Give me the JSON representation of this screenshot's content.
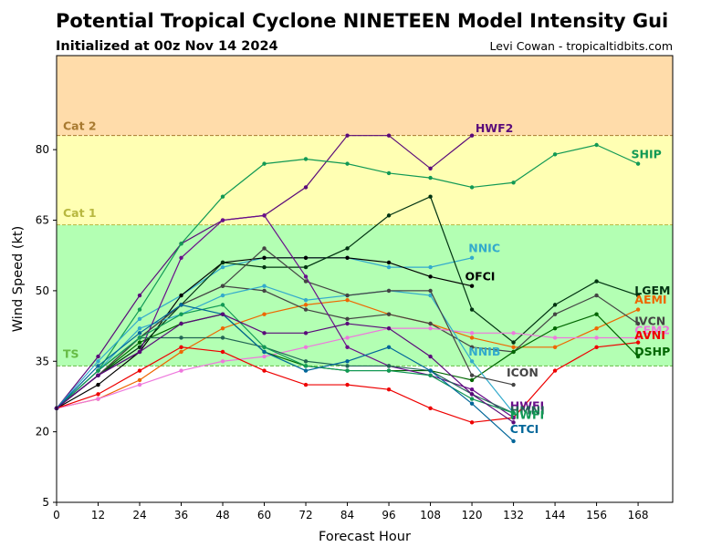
{
  "header": {
    "title": "Potential Tropical Cyclone NINETEEN Model Intensity Gui",
    "subtitle": "Initialized at 00z Nov 14 2024",
    "credit": "Levi Cowan - tropicaltidbits.com"
  },
  "chart_data": {
    "type": "line",
    "title": "Potential Tropical Cyclone NINETEEN Model Intensity Gui",
    "subtitle": "Initialized at 00z Nov 14 2024",
    "xlabel": "Forecast Hour",
    "ylabel": "Wind Speed (kt)",
    "xlim": [
      0,
      178
    ],
    "ylim": [
      5,
      100
    ],
    "xticks": [
      0,
      12,
      24,
      36,
      48,
      60,
      72,
      84,
      96,
      108,
      120,
      132,
      144,
      156,
      168
    ],
    "yticks": [
      5,
      20,
      35,
      50,
      65,
      80
    ],
    "bands": [
      {
        "label": "TS",
        "from": 34,
        "to": 64,
        "color": "#b3ffb3",
        "label_color": "#66bb44",
        "label_y": 36.5
      },
      {
        "label": "Cat 1",
        "from": 64,
        "to": 83,
        "color": "#ffffb3",
        "label_color": "#b8b840",
        "label_y": 66.5
      },
      {
        "label": "Cat 2",
        "from": 83,
        "to": 100,
        "color": "#ffdcaa",
        "label_color": "#a87a30",
        "label_y": 85
      }
    ],
    "series": [
      {
        "name": "HWF2",
        "color": "#5a0a7a",
        "x": [
          0,
          12,
          24,
          36,
          48,
          60,
          72,
          84,
          96,
          108,
          120
        ],
        "y": [
          25,
          36,
          49,
          60,
          65,
          66,
          72,
          83,
          83,
          76,
          83
        ],
        "label_x": 121,
        "label_y": 84.5
      },
      {
        "name": "SHIP",
        "color": "#119955",
        "x": [
          0,
          12,
          24,
          36,
          48,
          60,
          72,
          84,
          96,
          108,
          120,
          132,
          144,
          156,
          168
        ],
        "y": [
          25,
          33,
          46,
          60,
          70,
          77,
          78,
          77,
          75,
          74,
          72,
          73,
          79,
          81,
          77
        ],
        "label_x": 166,
        "label_y": 79
      },
      {
        "name": "NNIC",
        "color": "#33aacc",
        "x": [
          0,
          12,
          24,
          36,
          48,
          60,
          72,
          84,
          96,
          108,
          120
        ],
        "y": [
          25,
          35,
          44,
          49,
          55,
          57,
          57,
          57,
          55,
          55,
          57
        ],
        "label_x": 119,
        "label_y": 59
      },
      {
        "name": "OFCI",
        "color": "#000000",
        "x": [
          0,
          12,
          24,
          36,
          48,
          60,
          72,
          84,
          96,
          108,
          120
        ],
        "y": [
          25,
          30,
          37,
          49,
          56,
          57,
          57,
          57,
          56,
          53,
          51
        ],
        "label_x": 118,
        "label_y": 53
      },
      {
        "name": "LGEM",
        "color": "#003311",
        "x": [
          0,
          12,
          24,
          36,
          48,
          60,
          72,
          84,
          96,
          108,
          120,
          132,
          144,
          156,
          168
        ],
        "y": [
          25,
          32,
          38,
          47,
          56,
          55,
          55,
          59,
          66,
          70,
          46,
          39,
          47,
          52,
          49
        ],
        "label_x": 167,
        "label_y": 50
      },
      {
        "name": "AEMI",
        "color": "#ee6600",
        "x": [
          0,
          12,
          24,
          36,
          48,
          60,
          72,
          84,
          96,
          108,
          120,
          132,
          144,
          156,
          168
        ],
        "y": [
          25,
          27,
          31,
          37,
          42,
          45,
          47,
          48,
          45,
          43,
          40,
          38,
          38,
          42,
          46
        ],
        "label_x": 167,
        "label_y": 48
      },
      {
        "name": "IVCN",
        "color": "#444444",
        "x": [
          0,
          12,
          24,
          36,
          48,
          60,
          72,
          84,
          96,
          108,
          120,
          132,
          144,
          156,
          168
        ],
        "y": [
          25,
          32,
          40,
          47,
          51,
          50,
          46,
          44,
          45,
          43,
          38,
          37,
          45,
          49,
          43
        ],
        "label_x": 167,
        "label_y": 43.5
      },
      {
        "name": "CEM2",
        "color": "#ee77dd",
        "x": [
          0,
          12,
          24,
          36,
          48,
          60,
          72,
          84,
          96,
          108,
          120,
          132,
          144,
          156,
          168
        ],
        "y": [
          25,
          27,
          30,
          33,
          35,
          36,
          38,
          40,
          42,
          42,
          41,
          41,
          40,
          40,
          40
        ],
        "label_x": 167,
        "label_y": 41.5
      },
      {
        "name": "AVNI",
        "color": "#ee0000",
        "x": [
          0,
          12,
          24,
          36,
          48,
          60,
          72,
          84,
          96,
          108,
          120,
          132,
          144,
          156,
          168
        ],
        "y": [
          25,
          28,
          33,
          38,
          37,
          33,
          30,
          30,
          29,
          25,
          22,
          23,
          33,
          38,
          39
        ],
        "label_x": 167,
        "label_y": 40.5
      },
      {
        "name": "DSHP",
        "color": "#006600",
        "x": [
          0,
          12,
          24,
          36,
          48,
          60,
          72,
          84,
          96,
          108,
          120,
          132,
          144,
          156,
          168
        ],
        "y": [
          25,
          32,
          39,
          43,
          45,
          37,
          34,
          33,
          33,
          33,
          31,
          37,
          42,
          45,
          36
        ],
        "label_x": 167,
        "label_y": 37
      },
      {
        "name": "NNIB",
        "color": "#33aacc",
        "x": [
          0,
          12,
          24,
          36,
          48,
          60,
          72,
          84,
          96,
          108,
          120,
          132
        ],
        "y": [
          25,
          33,
          42,
          45,
          49,
          51,
          48,
          49,
          50,
          49,
          35,
          24
        ],
        "label_x": 119,
        "label_y": 37
      },
      {
        "name": "ICON",
        "color": "#444444",
        "x": [
          0,
          12,
          24,
          36,
          48,
          60,
          72,
          84,
          96,
          108,
          120,
          132
        ],
        "y": [
          25,
          32,
          40,
          47,
          51,
          59,
          52,
          49,
          50,
          50,
          32,
          30
        ],
        "label_x": 130,
        "label_y": 32.5
      },
      {
        "name": "HWFI",
        "color": "#6a0f8a",
        "x": [
          0,
          12,
          24,
          36,
          48,
          60,
          72,
          84,
          96,
          108,
          120,
          132
        ],
        "y": [
          25,
          32,
          37,
          57,
          65,
          66,
          53,
          38,
          34,
          32,
          29,
          23
        ],
        "label_x": 131,
        "label_y": 25.5
      },
      {
        "name": "HMNI",
        "color": "#226655",
        "x": [
          0,
          12,
          24,
          36,
          48,
          60,
          72,
          84,
          96,
          108,
          120,
          132
        ],
        "y": [
          25,
          33,
          40,
          40,
          40,
          38,
          35,
          34,
          34,
          33,
          28,
          24
        ],
        "label_x": 131,
        "label_y": 24.5
      },
      {
        "name": "HWFI",
        "color": "#119955",
        "x": [
          0,
          12,
          24,
          36,
          48,
          60,
          72,
          84,
          96,
          108,
          120,
          132
        ],
        "y": [
          25,
          33,
          40,
          45,
          47,
          38,
          34,
          33,
          33,
          32,
          27,
          24
        ],
        "label_x": 131,
        "label_y": 23.5
      },
      {
        "name": "CTCI",
        "color": "#006699",
        "x": [
          0,
          12,
          24,
          36,
          48,
          60,
          72,
          84,
          96,
          108,
          120,
          132
        ],
        "y": [
          25,
          34,
          41,
          47,
          45,
          37,
          33,
          35,
          38,
          33,
          26,
          18
        ],
        "label_x": 131,
        "label_y": 20.5
      },
      {
        "name": "",
        "color": "#5a0a7a",
        "x": [
          0,
          12,
          24,
          36,
          48,
          60,
          72,
          84,
          96,
          108,
          120,
          132
        ],
        "y": [
          25,
          32,
          37,
          43,
          45,
          41,
          41,
          43,
          42,
          36,
          28,
          22
        ],
        "label_x": null,
        "label_y": null
      }
    ]
  }
}
